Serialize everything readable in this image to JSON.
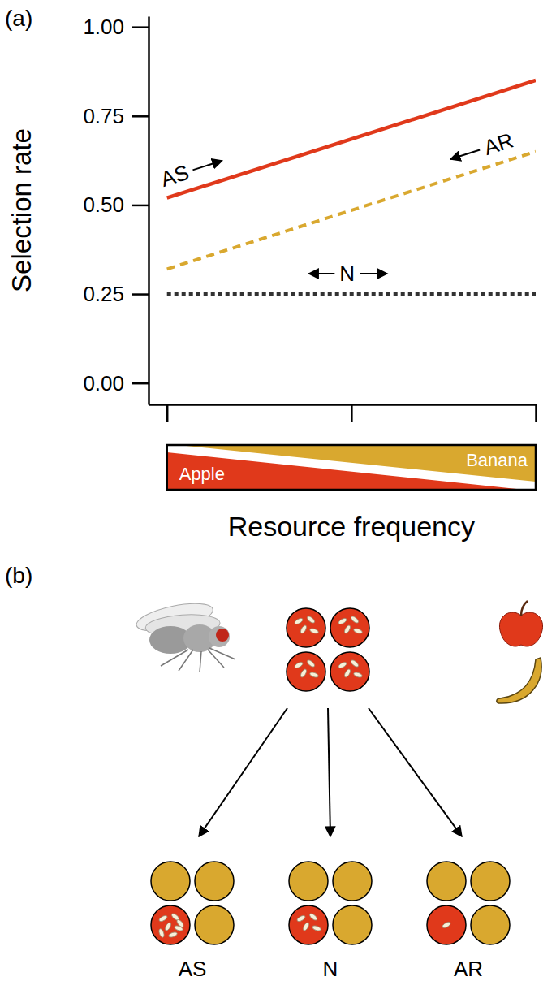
{
  "chart_data": {
    "type": "line",
    "title": "(a)",
    "y_label": "Selection rate",
    "x_label": "Resource frequency",
    "annotations": [
      "Apple",
      "Banana"
    ],
    "x": [
      0,
      1
    ],
    "xlim": [
      -0.05,
      1
    ],
    "xticks": [
      0,
      0.5,
      1
    ],
    "ylim": [
      -0.06,
      1.03
    ],
    "yticks": [
      {
        "value": 0,
        "label": "0.00"
      },
      {
        "value": 0.25,
        "label": "0.25"
      },
      {
        "value": 0.5,
        "label": "0.50"
      },
      {
        "value": 0.75,
        "label": "0.75"
      },
      {
        "value": 1,
        "label": "1.00"
      }
    ],
    "tick_labels": "y",
    "grid": false,
    "series": [
      {
        "name": "AS",
        "color": "#e0391b",
        "line_style": "solid",
        "values": [
          0.52,
          0.85
        ]
      },
      {
        "name": "AR",
        "color": "#d9a82f",
        "line_style": "dashed",
        "values": [
          0.32,
          0.65
        ]
      },
      {
        "name": "N",
        "color": "#333333",
        "line_style": "dotted",
        "values": [
          0.25,
          0.25
        ]
      }
    ]
  },
  "diagram": {
    "label": "(b)",
    "source": {
      "resource": "apple",
      "eggs": [
        4,
        4,
        4,
        4
      ]
    },
    "treatments": [
      {
        "label": "AS",
        "apple_eggs": 7
      },
      {
        "label": "N",
        "apple_eggs": 4
      },
      {
        "label": "AR",
        "apple_eggs": 1
      }
    ]
  }
}
